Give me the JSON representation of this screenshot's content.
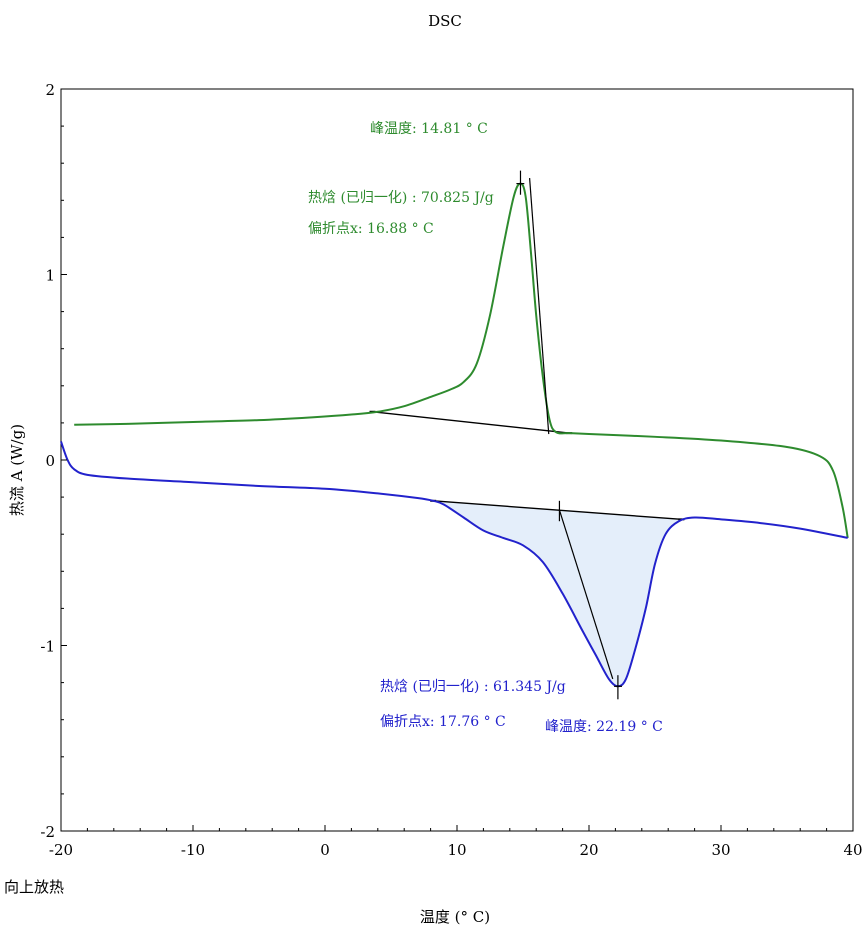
{
  "chart_data": {
    "type": "line",
    "title": "DSC",
    "xlabel": "温度    (° C)",
    "ylabel": "热流  A  (W/g)",
    "corner_note": "向上放热",
    "xlim": [
      -20,
      40
    ],
    "ylim": [
      -2,
      2
    ],
    "x_ticks": [
      -20,
      -10,
      0,
      10,
      20,
      30,
      40
    ],
    "y_ticks": [
      2,
      1,
      0,
      -1,
      -2
    ],
    "grid": false,
    "colors": {
      "heating_series": "#2e8b2e",
      "cooling_series": "#2222cc",
      "baseline": "#000000",
      "fill": "#e4eefa"
    },
    "series": [
      {
        "key": "upper",
        "color": "#2e8b2e",
        "points": [
          [
            -19,
            0.19
          ],
          [
            -15,
            0.195
          ],
          [
            -10,
            0.205
          ],
          [
            -5,
            0.215
          ],
          [
            -1,
            0.23
          ],
          [
            2,
            0.245
          ],
          [
            4,
            0.26
          ],
          [
            6,
            0.29
          ],
          [
            8,
            0.34
          ],
          [
            9.5,
            0.38
          ],
          [
            10.5,
            0.42
          ],
          [
            11.5,
            0.52
          ],
          [
            12.5,
            0.78
          ],
          [
            13.5,
            1.15
          ],
          [
            14.3,
            1.42
          ],
          [
            14.8,
            1.49
          ],
          [
            15.2,
            1.42
          ],
          [
            15.6,
            1.12
          ],
          [
            16,
            0.78
          ],
          [
            16.5,
            0.45
          ],
          [
            17,
            0.22
          ],
          [
            17.5,
            0.15
          ],
          [
            18.5,
            0.145
          ],
          [
            20,
            0.14
          ],
          [
            25,
            0.125
          ],
          [
            30,
            0.105
          ],
          [
            35,
            0.07
          ],
          [
            37.5,
            0.02
          ],
          [
            38.5,
            -0.06
          ],
          [
            39.2,
            -0.25
          ],
          [
            39.6,
            -0.42
          ]
        ]
      },
      {
        "key": "lower",
        "color": "#2222cc",
        "points": [
          [
            -20,
            0.1
          ],
          [
            -19.5,
            0.0
          ],
          [
            -19,
            -0.05
          ],
          [
            -18,
            -0.08
          ],
          [
            -15,
            -0.1
          ],
          [
            -10,
            -0.12
          ],
          [
            -5,
            -0.14
          ],
          [
            0,
            -0.155
          ],
          [
            4,
            -0.18
          ],
          [
            7,
            -0.205
          ],
          [
            8.2,
            -0.22
          ],
          [
            9,
            -0.24
          ],
          [
            10.5,
            -0.31
          ],
          [
            12,
            -0.38
          ],
          [
            13.5,
            -0.42
          ],
          [
            15,
            -0.46
          ],
          [
            16.5,
            -0.55
          ],
          [
            18,
            -0.72
          ],
          [
            19.5,
            -0.92
          ],
          [
            20.5,
            -1.05
          ],
          [
            21.5,
            -1.18
          ],
          [
            22.19,
            -1.22
          ],
          [
            22.8,
            -1.18
          ],
          [
            23.5,
            -1.02
          ],
          [
            24.3,
            -0.8
          ],
          [
            25,
            -0.56
          ],
          [
            25.8,
            -0.4
          ],
          [
            26.8,
            -0.33
          ],
          [
            28,
            -0.31
          ],
          [
            30,
            -0.32
          ],
          [
            33,
            -0.34
          ],
          [
            36,
            -0.37
          ],
          [
            39.6,
            -0.42
          ]
        ]
      }
    ],
    "annotations": [
      {
        "key": "heat_peak",
        "text": "峰温度: 14.81 ° C",
        "color": "#2e8b2e",
        "x": 14.81,
        "y": 1.49
      },
      {
        "key": "heat_enthalpy",
        "text": "热焓 (已归一化) : 70.825 J/g",
        "color": "#2e8b2e",
        "value": 70.825,
        "unit": "J/g"
      },
      {
        "key": "heat_inflection",
        "text": "偏折点x: 16.88 ° C",
        "color": "#2e8b2e",
        "x": 16.88
      },
      {
        "key": "cool_enthalpy",
        "text": "热焓 (已归一化) : 61.345 J/g",
        "color": "#2222cc",
        "value": 61.345,
        "unit": "J/g"
      },
      {
        "key": "cool_inflection",
        "text": "偏折点x: 17.76 ° C",
        "color": "#2222cc",
        "x": 17.76
      },
      {
        "key": "cool_peak",
        "text": "峰温度: 22.19 ° C",
        "color": "#2222cc",
        "x": 22.19,
        "y": -1.22
      }
    ],
    "baselines": [
      {
        "key": "upper",
        "from": [
          3.6,
          0.26
        ],
        "to": [
          18.5,
          0.145
        ]
      },
      {
        "key": "lower",
        "from": [
          8.2,
          -0.22
        ],
        "to": [
          27,
          -0.32
        ]
      }
    ]
  }
}
